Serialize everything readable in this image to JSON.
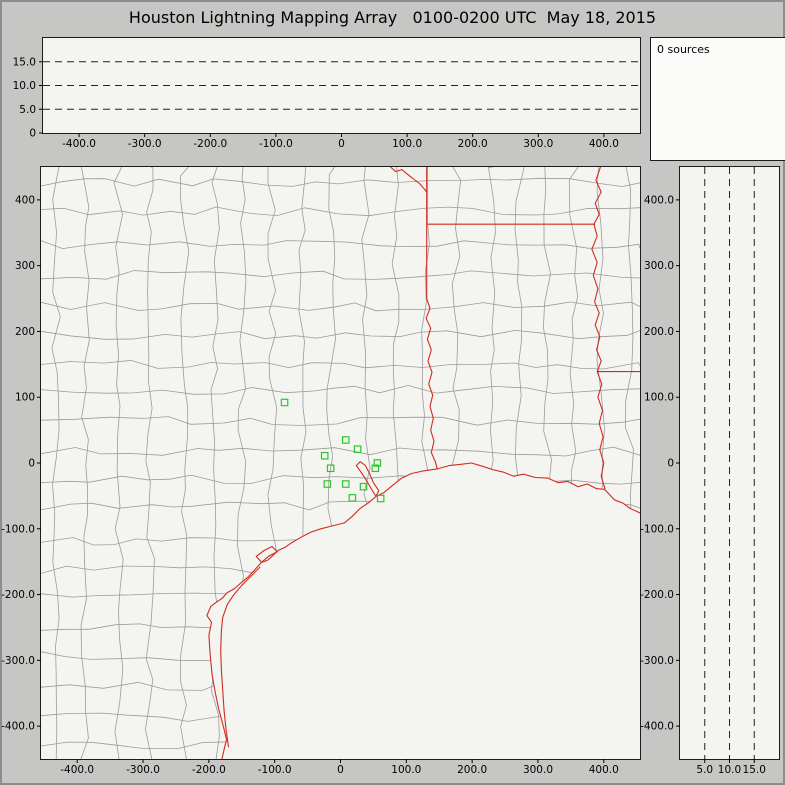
{
  "window": {
    "title": "Houston Lightning Mapping Array   0100-0200 UTC  May 18, 2015"
  },
  "sources_panel": {
    "label": "0 sources"
  },
  "colors": {
    "window_bg": "#c6c6c4",
    "window_border": "#8d8d8d",
    "panel_bg": "#f4f4f1",
    "sources_bg": "#fbfbf9",
    "panel_border": "#1c1c1c",
    "grid_dash": "#222222",
    "county": "#9b9b9b",
    "state": "#d22b1e",
    "station": "#2fc42f",
    "text": "#000000"
  },
  "axes": {
    "ew_km": {
      "min": -455,
      "max": 455,
      "tick_values": [
        -400,
        -300,
        -200,
        -100,
        0,
        100,
        200,
        300,
        400
      ],
      "tick_labels": [
        "-400.0",
        "-300.0",
        "-200.0",
        "-100.0",
        "0",
        "100.0",
        "200.0",
        "300.0",
        "400.0"
      ]
    },
    "ns_km": {
      "min": -450,
      "max": 450,
      "tick_values": [
        400,
        300,
        200,
        100,
        0,
        -100,
        -200,
        -300,
        -400
      ],
      "map_tick_labels": [
        "400",
        "300",
        "200",
        "100",
        "0",
        "-100.0",
        "-200.0",
        "-300.0",
        "-400.0"
      ],
      "right_tick_labels": [
        "400.0",
        "300.0",
        "200.0",
        "100.0",
        "0",
        "-100.0",
        "-200.0",
        "-300.0",
        "-400.0"
      ]
    },
    "alt_km": {
      "min": 0,
      "max": 20,
      "gridlines": [
        5,
        10,
        15
      ],
      "top_tick_values": [
        0,
        5,
        10,
        15
      ],
      "top_tick_labels": [
        "0",
        "5.0",
        "10.0",
        "15.0"
      ],
      "right_tick_values": [
        5,
        10,
        15
      ],
      "right_tick_labels": [
        "5.0",
        "10.0",
        "15.0"
      ]
    }
  },
  "chart_data": [
    {
      "type": "scatter",
      "panel": "altitude-vs-east-west",
      "xlim": [
        -455,
        455
      ],
      "ylim": [
        0,
        20
      ],
      "x_ticks": [
        -400,
        -300,
        -200,
        -100,
        0,
        100,
        200,
        300,
        400
      ],
      "y_gridlines": [
        5,
        10,
        15
      ],
      "points": [],
      "source_count": 0
    },
    {
      "type": "scatter",
      "panel": "plan-view-map",
      "xlim": [
        -455,
        455
      ],
      "ylim": [
        -450,
        450
      ],
      "x_ticks": [
        -400,
        -300,
        -200,
        -100,
        0,
        100,
        200,
        300,
        400
      ],
      "y_ticks": [
        400,
        300,
        200,
        100,
        0,
        -100,
        -200,
        -300,
        -400
      ],
      "points": [],
      "source_count": 0,
      "stations_km": [
        [
          -85,
          92
        ],
        [
          -24,
          11
        ],
        [
          8,
          35
        ],
        [
          26,
          21
        ],
        [
          -15,
          -8
        ],
        [
          -20,
          -32
        ],
        [
          8,
          -32
        ],
        [
          18,
          -53
        ],
        [
          35,
          -36
        ],
        [
          53,
          -8
        ],
        [
          56,
          0
        ],
        [
          61,
          -54
        ]
      ]
    },
    {
      "type": "scatter",
      "panel": "altitude-vs-north-south",
      "xlim": [
        0,
        20
      ],
      "ylim": [
        -450,
        450
      ],
      "x_gridlines": [
        5,
        10,
        15
      ],
      "y_ticks": [
        400,
        300,
        200,
        100,
        0,
        -100,
        -200,
        -300,
        -400
      ],
      "points": [],
      "source_count": 0
    }
  ],
  "map_geometry": {
    "coast": [
      [
        -180,
        -450
      ],
      [
        -176,
        -432
      ],
      [
        -173,
        -421
      ],
      [
        -178,
        -400
      ],
      [
        -185,
        -374
      ],
      [
        -190,
        -350
      ],
      [
        -195,
        -322
      ],
      [
        -198,
        -292
      ],
      [
        -200,
        -262
      ],
      [
        -196,
        -242
      ],
      [
        -203,
        -232
      ],
      [
        -197,
        -218
      ],
      [
        -188,
        -211
      ],
      [
        -180,
        -206
      ],
      [
        -172,
        -197
      ],
      [
        -161,
        -191
      ],
      [
        -150,
        -181
      ],
      [
        -140,
        -173
      ],
      [
        -129,
        -161
      ],
      [
        -120,
        -151
      ],
      [
        -111,
        -148
      ],
      [
        -103,
        -141
      ],
      [
        -95,
        -133
      ],
      [
        -84,
        -128
      ],
      [
        -74,
        -121
      ],
      [
        -60,
        -113
      ],
      [
        -45,
        -105
      ],
      [
        -30,
        -100
      ],
      [
        -14,
        -96
      ],
      [
        6,
        -91
      ],
      [
        18,
        -81
      ],
      [
        30,
        -69
      ],
      [
        42,
        -61
      ],
      [
        54,
        -51
      ],
      [
        66,
        -45
      ],
      [
        79,
        -34
      ],
      [
        93,
        -23
      ],
      [
        108,
        -16
      ],
      [
        126,
        -12
      ],
      [
        147,
        -9
      ],
      [
        165,
        -4
      ],
      [
        183,
        -2
      ],
      [
        199,
        0
      ],
      [
        216,
        -5
      ],
      [
        231,
        -10
      ],
      [
        248,
        -14
      ],
      [
        263,
        -20
      ],
      [
        278,
        -17
      ],
      [
        296,
        -22
      ],
      [
        315,
        -23
      ],
      [
        331,
        -30
      ],
      [
        345,
        -28
      ],
      [
        361,
        -36
      ],
      [
        375,
        -32
      ],
      [
        389,
        -39
      ],
      [
        401,
        -40
      ],
      [
        416,
        -56
      ],
      [
        429,
        -61
      ],
      [
        440,
        -69
      ],
      [
        451,
        -74
      ],
      [
        455,
        -76
      ]
    ],
    "barrier_island": [
      [
        -170,
        -432
      ],
      [
        -174,
        -405
      ],
      [
        -177,
        -375
      ],
      [
        -179,
        -345
      ],
      [
        -181,
        -315
      ],
      [
        -182,
        -285
      ],
      [
        -181,
        -255
      ],
      [
        -179,
        -235
      ],
      [
        -172,
        -215
      ],
      [
        -162,
        -200
      ],
      [
        -150,
        -186
      ],
      [
        -136,
        -172
      ],
      [
        -122,
        -158
      ]
    ],
    "galveston_bay": [
      [
        54,
        -51
      ],
      [
        46,
        -38
      ],
      [
        38,
        -24
      ],
      [
        30,
        -12
      ],
      [
        24,
        -4
      ],
      [
        30,
        2
      ],
      [
        38,
        -4
      ],
      [
        44,
        -16
      ],
      [
        50,
        -30
      ],
      [
        58,
        -42
      ],
      [
        54,
        -51
      ]
    ],
    "matagorda_bay": [
      [
        -120,
        -151
      ],
      [
        -108,
        -141
      ],
      [
        -96,
        -135
      ],
      [
        -104,
        -127
      ],
      [
        -116,
        -133
      ],
      [
        -128,
        -142
      ],
      [
        -120,
        -151
      ]
    ],
    "red_river": [
      [
        76,
        450
      ],
      [
        84,
        443
      ],
      [
        93,
        446
      ],
      [
        103,
        438
      ],
      [
        112,
        431
      ],
      [
        121,
        424
      ],
      [
        127,
        417
      ],
      [
        131,
        412
      ]
    ],
    "tx_state_line": [
      [
        131,
        450
      ],
      [
        131,
        250
      ]
    ],
    "sabine_river": [
      [
        131,
        250
      ],
      [
        136,
        235
      ],
      [
        130,
        220
      ],
      [
        137,
        205
      ],
      [
        132,
        188
      ],
      [
        138,
        172
      ],
      [
        133,
        155
      ],
      [
        139,
        138
      ],
      [
        134,
        120
      ],
      [
        140,
        103
      ],
      [
        136,
        86
      ],
      [
        141,
        68
      ],
      [
        137,
        50
      ],
      [
        142,
        33
      ],
      [
        138,
        16
      ],
      [
        144,
        2
      ],
      [
        147,
        -9
      ]
    ],
    "la_ar_border": [
      [
        131,
        363
      ],
      [
        387,
        363
      ]
    ],
    "ms_river": [
      [
        395,
        450
      ],
      [
        388,
        430
      ],
      [
        396,
        412
      ],
      [
        387,
        395
      ],
      [
        393,
        378
      ],
      [
        385,
        363
      ],
      [
        390,
        345
      ],
      [
        382,
        325
      ],
      [
        390,
        305
      ],
      [
        384,
        285
      ],
      [
        391,
        265
      ],
      [
        386,
        245
      ],
      [
        393,
        228
      ],
      [
        387,
        210
      ],
      [
        394,
        192
      ],
      [
        389,
        172
      ],
      [
        396,
        155
      ],
      [
        390,
        139
      ],
      [
        397,
        120
      ],
      [
        391,
        100
      ],
      [
        398,
        80
      ],
      [
        393,
        60
      ],
      [
        399,
        40
      ],
      [
        394,
        20
      ],
      [
        400,
        0
      ],
      [
        396,
        -20
      ],
      [
        402,
        -40
      ]
    ],
    "la_ms_31n": [
      [
        390,
        139
      ],
      [
        455,
        139
      ]
    ],
    "county_grid": {
      "seed": 11,
      "spacing_min": 38,
      "spacing_var": 17,
      "jitter": 7
    }
  }
}
